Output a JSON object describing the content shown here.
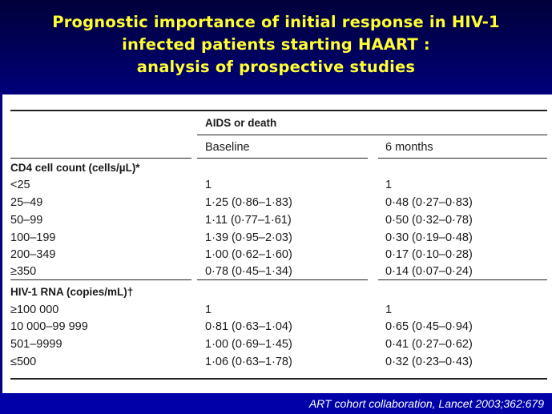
{
  "title": {
    "line1": "Prognostic importance of initial response in HIV-1",
    "line2": "infected patients starting HAART :",
    "line3": "analysis of prospective studies"
  },
  "table": {
    "group_header": "AIDS or death",
    "col_baseline": "Baseline",
    "col_6months": "6 months",
    "cd4": {
      "heading": "CD4 cell count (cells/µL)*",
      "rows": [
        {
          "label": "<25",
          "baseline": "1",
          "months6": "1"
        },
        {
          "label": "25–49",
          "baseline": "1·25 (0·86–1·83)",
          "months6": "0·48 (0·27–0·83)"
        },
        {
          "label": "50–99",
          "baseline": "1·11 (0·77–1·61)",
          "months6": "0·50 (0·32–0·78)"
        },
        {
          "label": "100–199",
          "baseline": "1·39 (0·95–2·03)",
          "months6": "0·30 (0·19–0·48)"
        },
        {
          "label": "200–349",
          "baseline": "1·00 (0·62–1·60)",
          "months6": "0·17 (0·10–0·28)"
        },
        {
          "label": "≥350",
          "baseline": "0·78 (0·45–1·34)",
          "months6": "0·14 (0·07–0·24)"
        }
      ]
    },
    "rna": {
      "heading": "HIV-1 RNA (copies/mL)†",
      "rows": [
        {
          "label": "≥100 000",
          "baseline": "1",
          "months6": "1"
        },
        {
          "label": "10 000–99 999",
          "baseline": "0·81 (0·63–1·04)",
          "months6": "0·65 (0·45–0·94)"
        },
        {
          "label": "501–9999",
          "baseline": "1·00 (0·69–1·45)",
          "months6": "0·41 (0·27–0·62)"
        },
        {
          "label": "≤500",
          "baseline": "1·06 (0·63–1·78)",
          "months6": "0·32 (0·23–0·43)"
        }
      ]
    }
  },
  "footer": {
    "citation": "ART cohort collaboration, Lancet 2003;362:679"
  }
}
